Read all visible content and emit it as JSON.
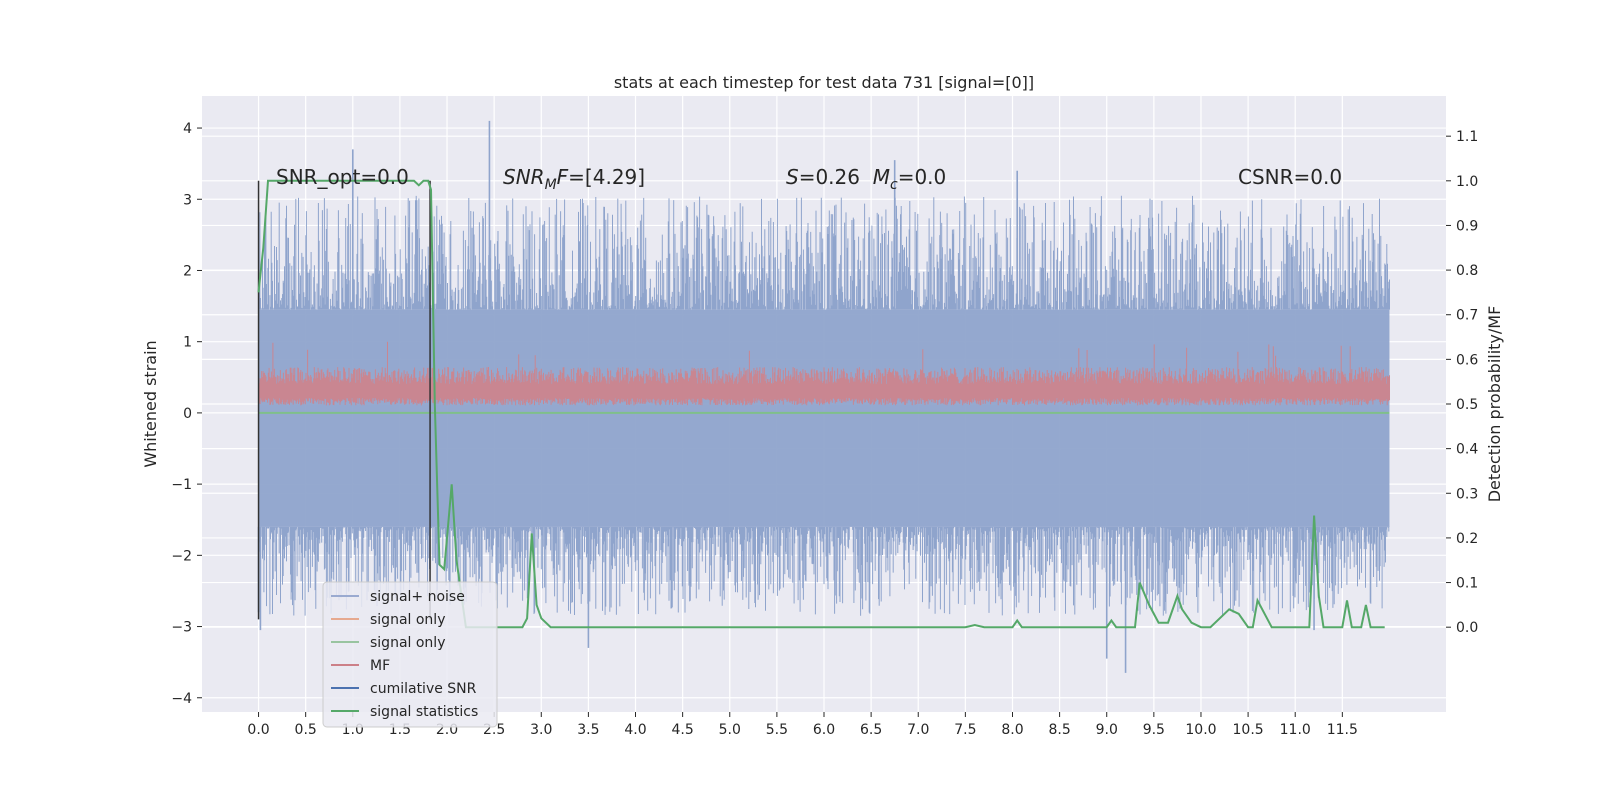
{
  "chart_data": {
    "type": "line",
    "title": "stats at each timestep for test data 731 [signal=[0]]",
    "ylabel": "Whitened strain",
    "y2label": "Detection probability/MF",
    "xlim": [
      -0.6,
      12.6
    ],
    "ylim": [
      -4.2,
      4.45
    ],
    "y2lim": [
      -0.19,
      1.19
    ],
    "x_ticks": [
      0.0,
      0.5,
      1.0,
      1.5,
      2.0,
      2.5,
      3.0,
      3.5,
      4.0,
      4.5,
      5.0,
      5.5,
      6.0,
      6.5,
      7.0,
      7.5,
      8.0,
      8.5,
      9.0,
      9.5,
      10.0,
      10.5,
      11.0,
      11.5
    ],
    "x_tick_labels": [
      "0.0",
      "0.5",
      "1.0",
      "1.5",
      "2.0",
      "2.5",
      "3.0",
      "3.5",
      "4.0",
      "4.5",
      "5.0",
      "5.5",
      "6.0",
      "6.5",
      "7.0",
      "7.5",
      "8.0",
      "8.5",
      "9.0",
      "9.5",
      "10.0",
      "10.5",
      "11.0",
      "11.5"
    ],
    "y_ticks": [
      -4,
      -3,
      -2,
      -1,
      0,
      1,
      2,
      3,
      4
    ],
    "y_tick_labels": [
      "−4",
      "−3",
      "−2",
      "−1",
      "0",
      "1",
      "2",
      "3",
      "4"
    ],
    "y2_ticks": [
      0.0,
      0.1,
      0.2,
      0.3,
      0.4,
      0.5,
      0.6,
      0.7,
      0.8,
      0.9,
      1.0,
      1.1
    ],
    "y2_tick_labels": [
      "0.0",
      "0.1",
      "0.2",
      "0.3",
      "0.4",
      "0.5",
      "0.6",
      "0.7",
      "0.8",
      "0.9",
      "1.0",
      "1.1"
    ],
    "grid": true,
    "legend_position": "lower-left",
    "annotations": [
      {
        "id": "snr-opt",
        "text": "SNR_opt=0.0"
      },
      {
        "id": "snr-mf",
        "text": "SNR_MF=[4.29]"
      },
      {
        "id": "s-mc",
        "text": "S=0.26  M_c=0.0"
      },
      {
        "id": "csnr",
        "text": "CSNR=0.0"
      }
    ],
    "vertical_markers_x": [
      0.0,
      1.82
    ],
    "noise_series": {
      "name": "signal+ noise",
      "axis": "left",
      "x_start": 0.0,
      "x_end": 12.0,
      "envelope_upper": 1.45,
      "envelope_lower": -1.6,
      "notable_peaks": [
        {
          "x": 2.45,
          "y": 4.1
        },
        {
          "x": 1.0,
          "y": 3.7
        },
        {
          "x": 6.75,
          "y": 3.55
        },
        {
          "x": 8.05,
          "y": 3.4
        },
        {
          "x": 0.0,
          "y": -2.8
        },
        {
          "x": 0.02,
          "y": -3.05
        },
        {
          "x": 3.5,
          "y": -3.3
        },
        {
          "x": 9.0,
          "y": -3.45
        },
        {
          "x": 9.2,
          "y": -3.65
        },
        {
          "x": 11.2,
          "y": -3.05
        }
      ]
    },
    "mf_series": {
      "name": "MF",
      "axis": "left",
      "center": 0.3,
      "spread": 0.3,
      "max": 1.0
    },
    "signal_only_series": {
      "name": "signal only",
      "axis": "left",
      "value": 0.0
    },
    "statistics_series": {
      "name": "signal statistics",
      "axis": "right",
      "x": [
        0.0,
        0.05,
        0.1,
        0.2,
        0.4,
        0.6,
        0.8,
        1.0,
        1.2,
        1.4,
        1.6,
        1.65,
        1.7,
        1.75,
        1.8,
        1.83,
        1.87,
        1.92,
        1.97,
        2.0,
        2.05,
        2.1,
        2.2,
        2.3,
        2.5,
        2.6,
        2.7,
        2.8,
        2.85,
        2.9,
        2.95,
        3.0,
        3.1,
        3.3,
        3.5,
        4.0,
        5.0,
        6.0,
        7.0,
        7.5,
        7.6,
        7.7,
        7.9,
        8.0,
        8.05,
        8.1,
        8.5,
        9.0,
        9.05,
        9.1,
        9.3,
        9.35,
        9.45,
        9.55,
        9.65,
        9.75,
        9.8,
        9.9,
        10.0,
        10.1,
        10.3,
        10.4,
        10.5,
        10.55,
        10.6,
        10.75,
        11.0,
        11.15,
        11.2,
        11.25,
        11.3,
        11.4,
        11.5,
        11.55,
        11.6,
        11.7,
        11.75,
        11.8,
        11.9,
        11.95
      ],
      "y": [
        0.75,
        0.85,
        1.0,
        1.0,
        1.0,
        1.0,
        1.0,
        1.0,
        1.0,
        1.0,
        1.0,
        1.0,
        0.99,
        1.0,
        1.0,
        0.98,
        0.5,
        0.14,
        0.13,
        0.2,
        0.32,
        0.15,
        0.0,
        0.0,
        0.0,
        0.0,
        0.0,
        0.0,
        0.02,
        0.21,
        0.05,
        0.02,
        0.0,
        0.0,
        0.0,
        0.0,
        0.0,
        0.0,
        0.0,
        0.0,
        0.005,
        0.0,
        0.0,
        0.0,
        0.015,
        0.0,
        0.0,
        0.0,
        0.015,
        0.0,
        0.0,
        0.1,
        0.05,
        0.01,
        0.01,
        0.07,
        0.04,
        0.01,
        0.0,
        0.0,
        0.04,
        0.03,
        0.0,
        0.0,
        0.06,
        0.0,
        0.0,
        0.0,
        0.25,
        0.07,
        0.0,
        0.0,
        0.0,
        0.06,
        0.0,
        0.0,
        0.05,
        0.0,
        0.0,
        0.0
      ]
    },
    "legend": [
      {
        "label": "signal+ noise",
        "color": "#9aaad0"
      },
      {
        "label": "signal only",
        "color": "#e6a98f"
      },
      {
        "label": "signal only",
        "color": "#99c4a0"
      },
      {
        "label": "MF",
        "color": "#cc8088"
      },
      {
        "label": "cumilative SNR",
        "color": "#4c72b0"
      },
      {
        "label": "signal statistics",
        "color": "#55a868"
      }
    ],
    "colors": {
      "plot_background": "#eaeaf2",
      "grid": "#ffffff",
      "noise": "#8fa4cc",
      "mf": "#c98691",
      "signal_only": "#7fbf8a",
      "statistics": "#55a868",
      "markers": "#333333"
    }
  }
}
